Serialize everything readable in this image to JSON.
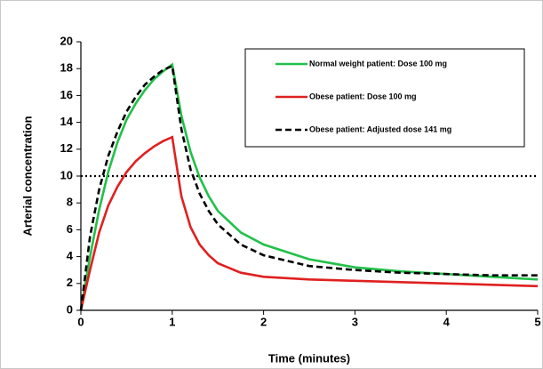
{
  "chart_data": {
    "type": "line",
    "xlabel": "Time (minutes)",
    "ylabel": "Arterial concentration",
    "x": [
      0,
      0.1,
      0.2,
      0.3,
      0.4,
      0.5,
      0.6,
      0.7,
      0.8,
      0.9,
      1.0,
      1.1,
      1.2,
      1.3,
      1.4,
      1.5,
      1.75,
      2,
      2.5,
      3,
      3.5,
      4,
      4.5,
      5
    ],
    "series": [
      {
        "name": "Normal weight patient: Dose 100 mg",
        "color": "#22c04a",
        "style": "solid",
        "values": [
          0,
          4,
          7.5,
          10.3,
          12.5,
          14.2,
          15.4,
          16.4,
          17.2,
          17.8,
          18.3,
          14.5,
          11.8,
          9.9,
          8.5,
          7.4,
          5.8,
          4.9,
          3.8,
          3.2,
          2.9,
          2.7,
          2.5,
          2.3
        ]
      },
      {
        "name": "Obese patient: Dose 100 mg",
        "color": "#e02020",
        "style": "solid",
        "values": [
          0,
          3,
          5.8,
          7.8,
          9.2,
          10.3,
          11.1,
          11.7,
          12.2,
          12.6,
          12.9,
          8.5,
          6.2,
          4.9,
          4.1,
          3.5,
          2.8,
          2.5,
          2.3,
          2.2,
          2.1,
          2.0,
          1.9,
          1.8
        ]
      },
      {
        "name": "Obese patient: Adjusted dose 141 mg",
        "color": "#000000",
        "style": "dashed",
        "values": [
          0,
          5.5,
          9.0,
          11.5,
          13.3,
          14.8,
          15.9,
          16.8,
          17.4,
          17.9,
          18.2,
          13.5,
          10.5,
          8.7,
          7.4,
          6.4,
          4.9,
          4.1,
          3.3,
          3.0,
          2.8,
          2.7,
          2.6,
          2.6
        ]
      }
    ],
    "reference_line": 10,
    "xlim": [
      0,
      5
    ],
    "xticks": [
      0,
      1,
      2,
      3,
      4,
      5
    ],
    "ylim": [
      0,
      20
    ],
    "yticks": [
      0,
      2,
      4,
      6,
      8,
      10,
      12,
      14,
      16,
      18,
      20
    ],
    "legend": "upper right"
  }
}
